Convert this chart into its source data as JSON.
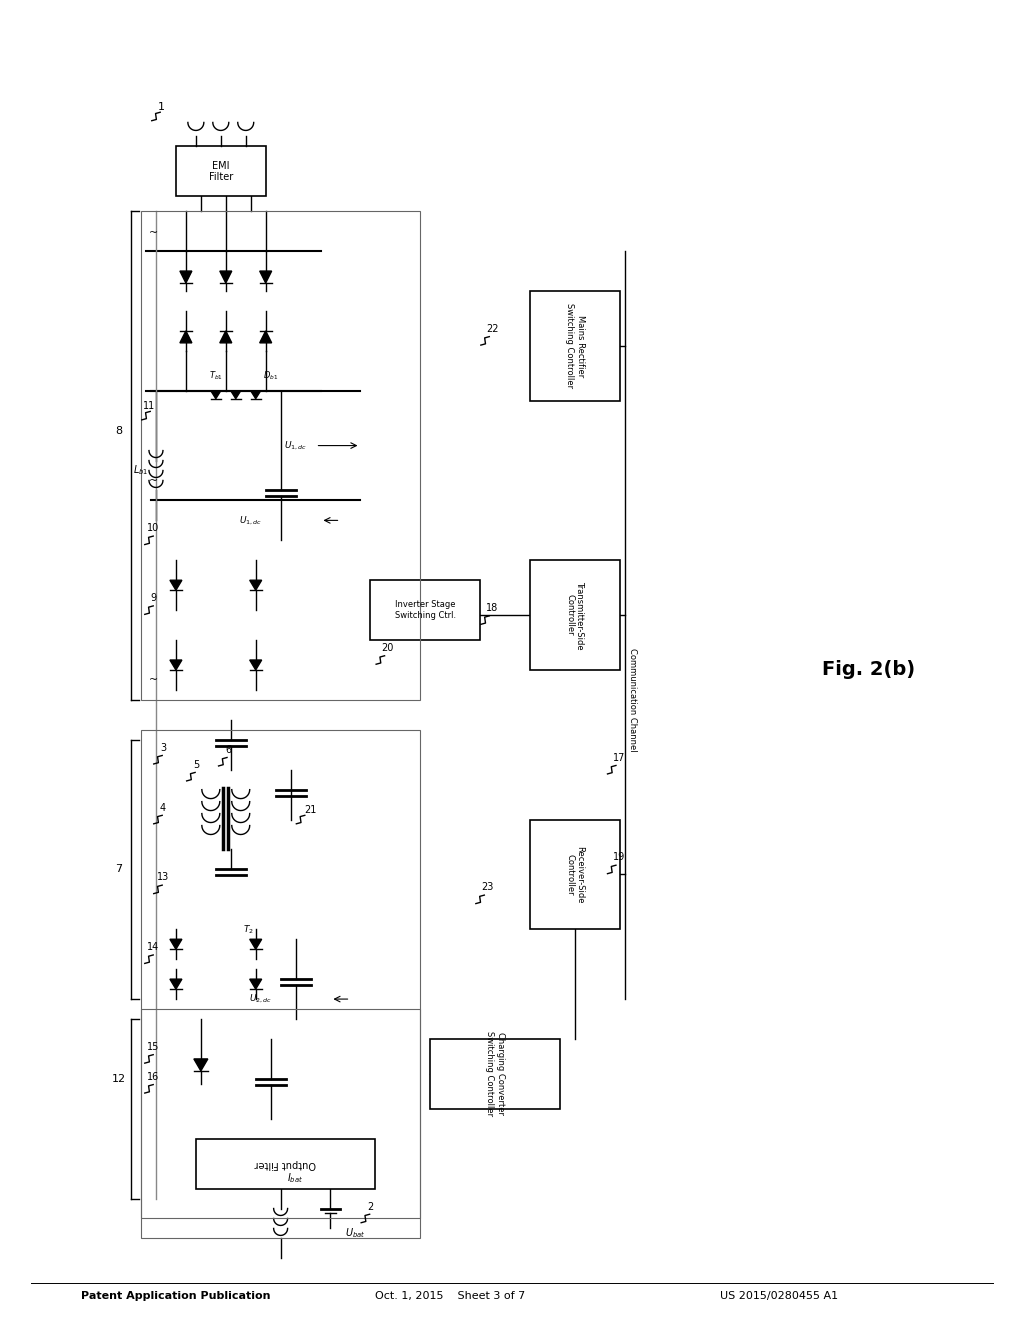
{
  "title_left": "Patent Application Publication",
  "title_center": "Oct. 1, 2015   Sheet 3 of 7",
  "title_right": "US 2015/0280455 A1",
  "fig_label": "Fig. 2(b)",
  "background_color": "#ffffff",
  "line_color": "#000000",
  "box_fill": "#ffffff",
  "text_color": "#000000"
}
